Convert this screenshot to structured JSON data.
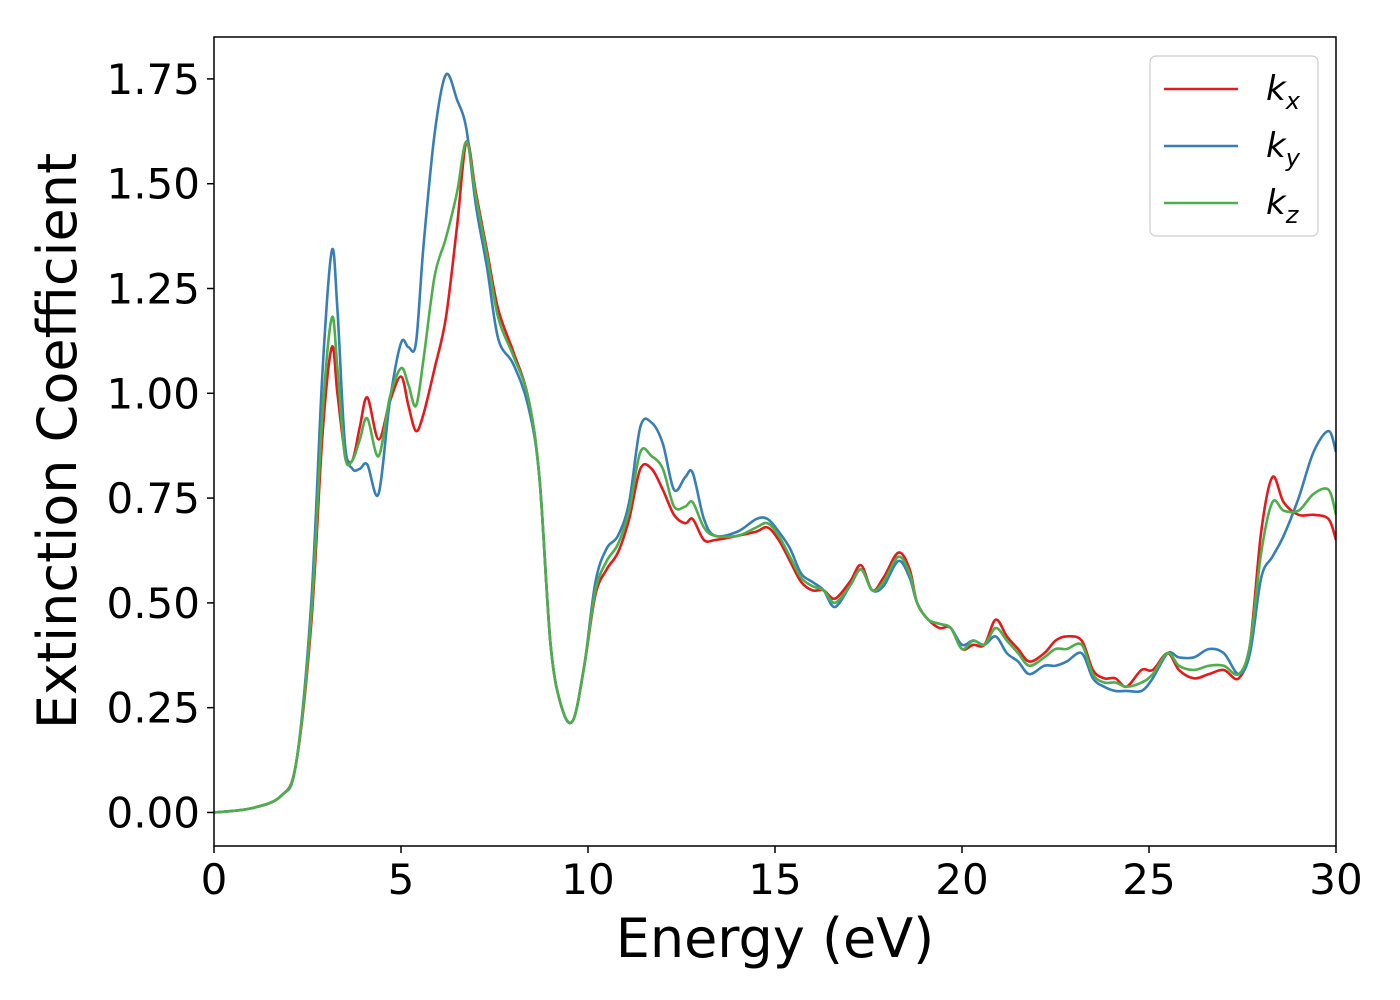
{
  "chart_data": {
    "type": "line",
    "xlabel": "Energy (eV)",
    "ylabel": "Extinction Coefficient",
    "xlim": [
      0,
      30
    ],
    "ylim": [
      -0.08,
      1.85
    ],
    "xticks": [
      0,
      5,
      10,
      15,
      20,
      25,
      30
    ],
    "xtick_labels": [
      "0",
      "5",
      "10",
      "15",
      "20",
      "25",
      "30"
    ],
    "yticks": [
      0.0,
      0.25,
      0.5,
      0.75,
      1.0,
      1.25,
      1.5,
      1.75
    ],
    "ytick_labels": [
      "0.00",
      "0.25",
      "0.50",
      "0.75",
      "1.00",
      "1.25",
      "1.50",
      "1.75"
    ],
    "grid": false,
    "legend_position": "top-right",
    "series": [
      {
        "name": "k",
        "subscript": "x",
        "color": "#e41a1c",
        "points": [
          [
            0,
            0.0
          ],
          [
            1.0,
            0.01
          ],
          [
            1.8,
            0.04
          ],
          [
            2.2,
            0.12
          ],
          [
            2.6,
            0.45
          ],
          [
            2.9,
            0.9
          ],
          [
            3.15,
            1.11
          ],
          [
            3.3,
            1.0
          ],
          [
            3.5,
            0.86
          ],
          [
            3.7,
            0.84
          ],
          [
            3.9,
            0.92
          ],
          [
            4.1,
            0.99
          ],
          [
            4.4,
            0.89
          ],
          [
            4.7,
            0.98
          ],
          [
            5.0,
            1.04
          ],
          [
            5.2,
            0.97
          ],
          [
            5.4,
            0.91
          ],
          [
            5.6,
            0.95
          ],
          [
            5.9,
            1.06
          ],
          [
            6.2,
            1.18
          ],
          [
            6.5,
            1.4
          ],
          [
            6.75,
            1.6
          ],
          [
            7.0,
            1.48
          ],
          [
            7.3,
            1.34
          ],
          [
            7.6,
            1.2
          ],
          [
            8.0,
            1.1
          ],
          [
            8.4,
            0.99
          ],
          [
            8.7,
            0.8
          ],
          [
            9.0,
            0.4
          ],
          [
            9.3,
            0.25
          ],
          [
            9.6,
            0.22
          ],
          [
            9.9,
            0.35
          ],
          [
            10.2,
            0.52
          ],
          [
            10.5,
            0.58
          ],
          [
            10.8,
            0.62
          ],
          [
            11.1,
            0.7
          ],
          [
            11.4,
            0.82
          ],
          [
            11.7,
            0.82
          ],
          [
            12.0,
            0.77
          ],
          [
            12.3,
            0.71
          ],
          [
            12.6,
            0.69
          ],
          [
            12.8,
            0.7
          ],
          [
            13.1,
            0.65
          ],
          [
            13.4,
            0.65
          ],
          [
            14.0,
            0.66
          ],
          [
            14.5,
            0.67
          ],
          [
            14.8,
            0.68
          ],
          [
            15.1,
            0.65
          ],
          [
            15.4,
            0.6
          ],
          [
            15.7,
            0.55
          ],
          [
            16.0,
            0.53
          ],
          [
            16.3,
            0.53
          ],
          [
            16.6,
            0.51
          ],
          [
            17.0,
            0.55
          ],
          [
            17.3,
            0.59
          ],
          [
            17.6,
            0.53
          ],
          [
            17.9,
            0.56
          ],
          [
            18.3,
            0.62
          ],
          [
            18.6,
            0.58
          ],
          [
            18.8,
            0.5
          ],
          [
            19.1,
            0.46
          ],
          [
            19.4,
            0.44
          ],
          [
            19.7,
            0.44
          ],
          [
            20.0,
            0.39
          ],
          [
            20.3,
            0.4
          ],
          [
            20.6,
            0.4
          ],
          [
            20.9,
            0.46
          ],
          [
            21.2,
            0.42
          ],
          [
            21.5,
            0.39
          ],
          [
            21.8,
            0.36
          ],
          [
            22.2,
            0.38
          ],
          [
            22.5,
            0.41
          ],
          [
            22.8,
            0.42
          ],
          [
            23.2,
            0.41
          ],
          [
            23.5,
            0.34
          ],
          [
            23.8,
            0.32
          ],
          [
            24.1,
            0.32
          ],
          [
            24.4,
            0.3
          ],
          [
            24.8,
            0.34
          ],
          [
            25.1,
            0.34
          ],
          [
            25.5,
            0.38
          ],
          [
            25.8,
            0.34
          ],
          [
            26.2,
            0.32
          ],
          [
            26.6,
            0.33
          ],
          [
            27.0,
            0.34
          ],
          [
            27.4,
            0.32
          ],
          [
            27.7,
            0.4
          ],
          [
            28.0,
            0.67
          ],
          [
            28.3,
            0.8
          ],
          [
            28.6,
            0.74
          ],
          [
            29.0,
            0.71
          ],
          [
            29.4,
            0.71
          ],
          [
            29.8,
            0.7
          ],
          [
            30.0,
            0.65
          ]
        ]
      },
      {
        "name": "k",
        "subscript": "y",
        "color": "#377eb8",
        "points": [
          [
            0,
            0.0
          ],
          [
            1.0,
            0.01
          ],
          [
            1.8,
            0.04
          ],
          [
            2.2,
            0.12
          ],
          [
            2.6,
            0.5
          ],
          [
            2.9,
            1.05
          ],
          [
            3.15,
            1.34
          ],
          [
            3.3,
            1.2
          ],
          [
            3.5,
            0.88
          ],
          [
            3.7,
            0.82
          ],
          [
            3.9,
            0.82
          ],
          [
            4.1,
            0.83
          ],
          [
            4.4,
            0.76
          ],
          [
            4.7,
            0.98
          ],
          [
            5.0,
            1.12
          ],
          [
            5.2,
            1.11
          ],
          [
            5.4,
            1.12
          ],
          [
            5.6,
            1.35
          ],
          [
            5.9,
            1.62
          ],
          [
            6.2,
            1.76
          ],
          [
            6.5,
            1.7
          ],
          [
            6.75,
            1.63
          ],
          [
            7.0,
            1.45
          ],
          [
            7.3,
            1.3
          ],
          [
            7.6,
            1.13
          ],
          [
            8.0,
            1.07
          ],
          [
            8.4,
            0.97
          ],
          [
            8.7,
            0.8
          ],
          [
            9.0,
            0.4
          ],
          [
            9.3,
            0.25
          ],
          [
            9.6,
            0.22
          ],
          [
            9.9,
            0.35
          ],
          [
            10.2,
            0.55
          ],
          [
            10.5,
            0.63
          ],
          [
            10.8,
            0.66
          ],
          [
            11.1,
            0.74
          ],
          [
            11.4,
            0.92
          ],
          [
            11.7,
            0.93
          ],
          [
            12.0,
            0.88
          ],
          [
            12.3,
            0.77
          ],
          [
            12.6,
            0.8
          ],
          [
            12.8,
            0.81
          ],
          [
            13.1,
            0.7
          ],
          [
            13.4,
            0.66
          ],
          [
            14.0,
            0.67
          ],
          [
            14.5,
            0.7
          ],
          [
            14.8,
            0.7
          ],
          [
            15.1,
            0.67
          ],
          [
            15.4,
            0.63
          ],
          [
            15.7,
            0.57
          ],
          [
            16.0,
            0.55
          ],
          [
            16.3,
            0.53
          ],
          [
            16.6,
            0.49
          ],
          [
            17.0,
            0.54
          ],
          [
            17.3,
            0.58
          ],
          [
            17.6,
            0.53
          ],
          [
            17.9,
            0.54
          ],
          [
            18.3,
            0.6
          ],
          [
            18.6,
            0.56
          ],
          [
            18.8,
            0.5
          ],
          [
            19.1,
            0.46
          ],
          [
            19.4,
            0.45
          ],
          [
            19.7,
            0.44
          ],
          [
            20.0,
            0.4
          ],
          [
            20.3,
            0.41
          ],
          [
            20.6,
            0.4
          ],
          [
            20.9,
            0.42
          ],
          [
            21.2,
            0.38
          ],
          [
            21.5,
            0.36
          ],
          [
            21.8,
            0.33
          ],
          [
            22.2,
            0.35
          ],
          [
            22.5,
            0.35
          ],
          [
            22.8,
            0.36
          ],
          [
            23.2,
            0.38
          ],
          [
            23.5,
            0.32
          ],
          [
            23.8,
            0.3
          ],
          [
            24.1,
            0.29
          ],
          [
            24.4,
            0.29
          ],
          [
            24.8,
            0.29
          ],
          [
            25.1,
            0.32
          ],
          [
            25.5,
            0.38
          ],
          [
            25.8,
            0.37
          ],
          [
            26.2,
            0.37
          ],
          [
            26.6,
            0.39
          ],
          [
            27.0,
            0.38
          ],
          [
            27.4,
            0.33
          ],
          [
            27.7,
            0.38
          ],
          [
            28.0,
            0.56
          ],
          [
            28.3,
            0.61
          ],
          [
            28.6,
            0.66
          ],
          [
            29.0,
            0.75
          ],
          [
            29.4,
            0.86
          ],
          [
            29.8,
            0.91
          ],
          [
            30.0,
            0.86
          ]
        ]
      },
      {
        "name": "k",
        "subscript": "z",
        "color": "#4daf4a",
        "points": [
          [
            0,
            0.0
          ],
          [
            1.0,
            0.01
          ],
          [
            1.8,
            0.04
          ],
          [
            2.2,
            0.12
          ],
          [
            2.6,
            0.47
          ],
          [
            2.9,
            0.95
          ],
          [
            3.15,
            1.18
          ],
          [
            3.3,
            1.06
          ],
          [
            3.5,
            0.85
          ],
          [
            3.7,
            0.84
          ],
          [
            3.9,
            0.89
          ],
          [
            4.1,
            0.94
          ],
          [
            4.4,
            0.85
          ],
          [
            4.7,
            0.99
          ],
          [
            5.0,
            1.06
          ],
          [
            5.2,
            1.02
          ],
          [
            5.4,
            0.97
          ],
          [
            5.6,
            1.08
          ],
          [
            5.9,
            1.28
          ],
          [
            6.2,
            1.37
          ],
          [
            6.5,
            1.48
          ],
          [
            6.75,
            1.6
          ],
          [
            7.0,
            1.47
          ],
          [
            7.3,
            1.33
          ],
          [
            7.6,
            1.18
          ],
          [
            8.0,
            1.09
          ],
          [
            8.4,
            0.99
          ],
          [
            8.7,
            0.8
          ],
          [
            9.0,
            0.4
          ],
          [
            9.3,
            0.25
          ],
          [
            9.6,
            0.22
          ],
          [
            9.9,
            0.35
          ],
          [
            10.2,
            0.53
          ],
          [
            10.5,
            0.6
          ],
          [
            10.8,
            0.64
          ],
          [
            11.1,
            0.72
          ],
          [
            11.4,
            0.86
          ],
          [
            11.7,
            0.85
          ],
          [
            12.0,
            0.82
          ],
          [
            12.3,
            0.73
          ],
          [
            12.6,
            0.73
          ],
          [
            12.8,
            0.74
          ],
          [
            13.1,
            0.68
          ],
          [
            13.4,
            0.66
          ],
          [
            14.0,
            0.66
          ],
          [
            14.5,
            0.68
          ],
          [
            14.8,
            0.69
          ],
          [
            15.1,
            0.66
          ],
          [
            15.4,
            0.61
          ],
          [
            15.7,
            0.56
          ],
          [
            16.0,
            0.54
          ],
          [
            16.3,
            0.53
          ],
          [
            16.6,
            0.5
          ],
          [
            17.0,
            0.54
          ],
          [
            17.3,
            0.58
          ],
          [
            17.6,
            0.53
          ],
          [
            17.9,
            0.55
          ],
          [
            18.3,
            0.61
          ],
          [
            18.6,
            0.57
          ],
          [
            18.8,
            0.5
          ],
          [
            19.1,
            0.46
          ],
          [
            19.4,
            0.45
          ],
          [
            19.7,
            0.44
          ],
          [
            20.0,
            0.39
          ],
          [
            20.3,
            0.41
          ],
          [
            20.6,
            0.4
          ],
          [
            20.9,
            0.44
          ],
          [
            21.2,
            0.41
          ],
          [
            21.5,
            0.38
          ],
          [
            21.8,
            0.35
          ],
          [
            22.2,
            0.37
          ],
          [
            22.5,
            0.39
          ],
          [
            22.8,
            0.39
          ],
          [
            23.2,
            0.4
          ],
          [
            23.5,
            0.33
          ],
          [
            23.8,
            0.31
          ],
          [
            24.1,
            0.31
          ],
          [
            24.4,
            0.3
          ],
          [
            24.8,
            0.31
          ],
          [
            25.1,
            0.33
          ],
          [
            25.5,
            0.38
          ],
          [
            25.8,
            0.35
          ],
          [
            26.2,
            0.34
          ],
          [
            26.6,
            0.35
          ],
          [
            27.0,
            0.35
          ],
          [
            27.4,
            0.33
          ],
          [
            27.7,
            0.4
          ],
          [
            28.0,
            0.62
          ],
          [
            28.3,
            0.74
          ],
          [
            28.6,
            0.72
          ],
          [
            29.0,
            0.72
          ],
          [
            29.4,
            0.76
          ],
          [
            29.8,
            0.77
          ],
          [
            30.0,
            0.71
          ]
        ]
      }
    ]
  }
}
